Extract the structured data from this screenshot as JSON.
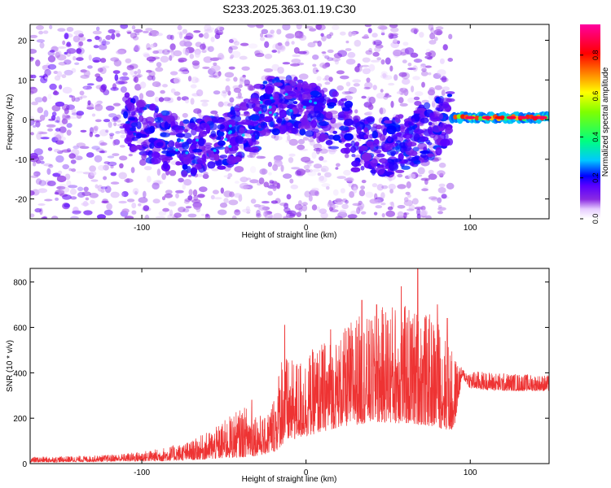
{
  "title": "S233.2025.363.01.19.C30",
  "chart_data": [
    {
      "type": "heatmap",
      "xlabel": "Height of straight line (km)",
      "ylabel": "Frequency (Hz)",
      "xlim": [
        -168,
        148
      ],
      "ylim": [
        -25,
        24
      ],
      "x_ticks": [
        -100,
        0,
        100
      ],
      "y_ticks": [
        -20,
        -10,
        0,
        10,
        20
      ],
      "colorbar": {
        "label": "Normalized spectral amplitude",
        "range": [
          0,
          0.95
        ],
        "ticks": [
          0.0,
          0.2,
          0.4,
          0.6,
          0.8
        ],
        "colors": [
          "#ffffff",
          "#e6ccff",
          "#8a2be2",
          "#5a00ff",
          "#0000ff",
          "#00c8ff",
          "#00ff80",
          "#80ff00",
          "#ffff00",
          "#ff8000",
          "#ff0000",
          "#ff00a0"
        ]
      },
      "features": [
        {
          "name": "scattered noise",
          "x_range": [
            -168,
            88
          ],
          "freq_range": [
            -25,
            24
          ],
          "amplitude": 0.1
        },
        {
          "name": "energy band",
          "x_range": [
            -110,
            88
          ],
          "freq_center": [
            -5,
            4
          ],
          "amplitude": 0.2
        },
        {
          "name": "signal line",
          "x_range": [
            89,
            148
          ],
          "freq": 0.5,
          "amplitude": 0.85
        }
      ]
    },
    {
      "type": "line",
      "xlabel": "Height of straight line (km)",
      "ylabel": "SNR (10 * v/v)",
      "xlim": [
        -168,
        148
      ],
      "ylim": [
        0,
        860
      ],
      "x_ticks": [
        -100,
        0,
        100
      ],
      "y_ticks": [
        0,
        200,
        400,
        600,
        800
      ],
      "series": [
        {
          "color": "#ee3333",
          "envelope": {
            "x": [
              -168,
              -130,
              -110,
              -90,
              -70,
              -55,
              -45,
              -35,
              -25,
              -18,
              -15,
              -10,
              0,
              10,
              20,
              30,
              40,
              50,
              60,
              70,
              80,
              85,
              90,
              95,
              100,
              120,
              148
            ],
            "low": [
              5,
              8,
              10,
              10,
              15,
              20,
              25,
              30,
              40,
              55,
              80,
              100,
              120,
              140,
              160,
              170,
              180,
              180,
              175,
              170,
              160,
              150,
              140,
              380,
              330,
              320,
              320
            ],
            "high": [
              30,
              35,
              45,
              65,
              100,
              160,
              220,
              260,
              200,
              340,
              520,
              450,
              480,
              540,
              560,
              660,
              640,
              720,
              700,
              680,
              640,
              560,
              480,
              420,
              410,
              400,
              390
            ]
          },
          "spikes": [
            {
              "x": -33,
              "y": 280
            },
            {
              "x": -13,
              "y": 610
            },
            {
              "x": 15,
              "y": 590
            },
            {
              "x": 34,
              "y": 720
            },
            {
              "x": 43,
              "y": 700
            },
            {
              "x": 58,
              "y": 780
            },
            {
              "x": 68,
              "y": 860
            },
            {
              "x": 80,
              "y": 700
            },
            {
              "x": 86,
              "y": 640
            }
          ]
        }
      ]
    }
  ]
}
